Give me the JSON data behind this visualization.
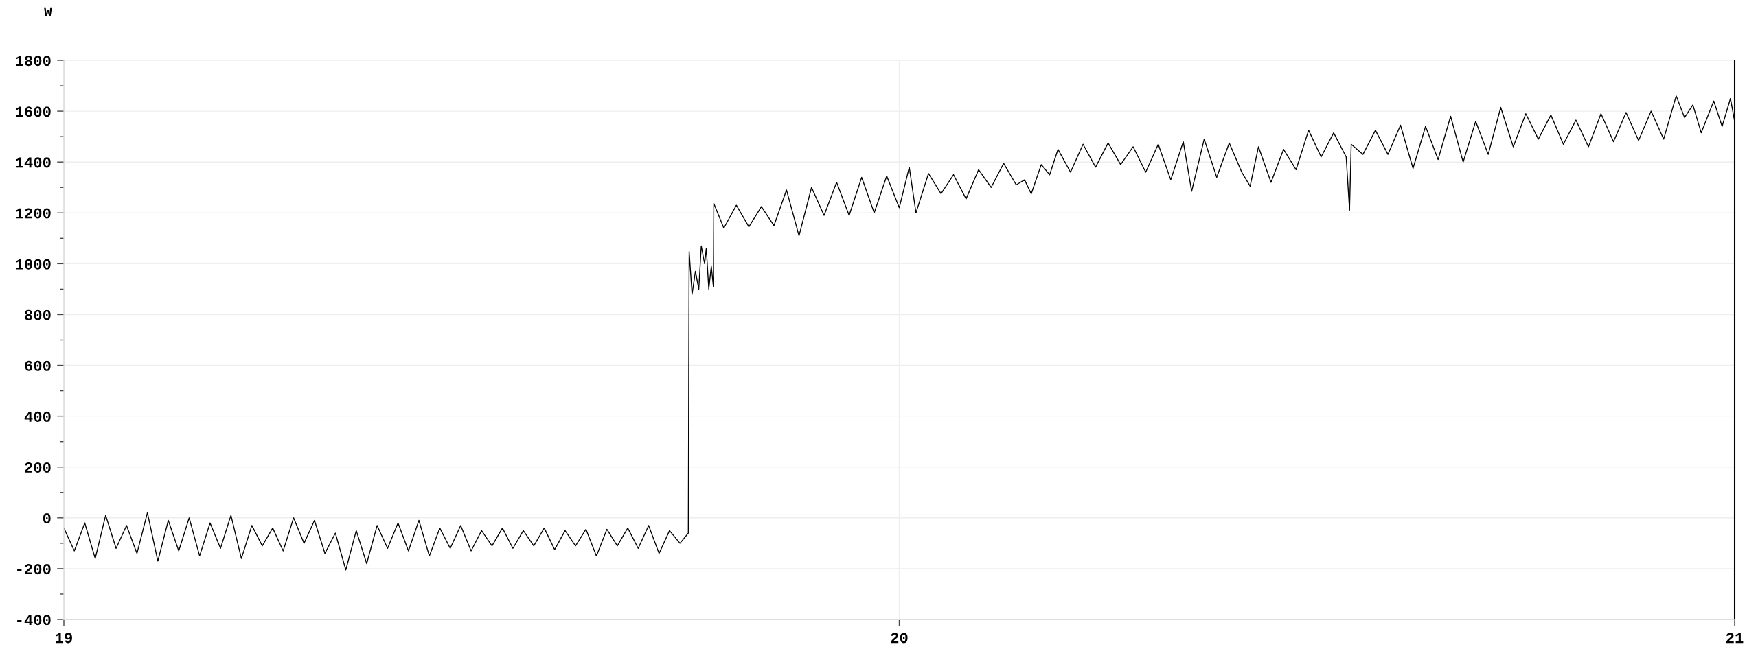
{
  "chart_data": {
    "type": "line",
    "ylabel": "W",
    "x": [
      19.0,
      19.0125,
      19.025,
      19.0375,
      19.05,
      19.0625,
      19.075,
      19.0875,
      19.1,
      19.1125,
      19.125,
      19.1375,
      19.15,
      19.1625,
      19.175,
      19.1875,
      19.2,
      19.2125,
      19.225,
      19.2375,
      19.25,
      19.2625,
      19.275,
      19.2875,
      19.3,
      19.3125,
      19.325,
      19.3375,
      19.35,
      19.3625,
      19.375,
      19.3875,
      19.4,
      19.4125,
      19.425,
      19.4375,
      19.45,
      19.4625,
      19.475,
      19.4875,
      19.5,
      19.5125,
      19.525,
      19.5375,
      19.55,
      19.5625,
      19.575,
      19.5875,
      19.6,
      19.6125,
      19.625,
      19.6375,
      19.65,
      19.6625,
      19.675,
      19.6875,
      19.7,
      19.7125,
      19.725,
      19.7375,
      19.7475,
      19.748,
      19.7485,
      19.752,
      19.756,
      19.76,
      19.763,
      19.767,
      19.769,
      19.772,
      19.775,
      19.7775,
      19.778,
      19.79,
      19.805,
      19.82,
      19.835,
      19.85,
      19.865,
      19.88,
      19.895,
      19.91,
      19.925,
      19.94,
      19.955,
      19.97,
      19.985,
      20.0,
      20.012,
      20.02,
      20.035,
      20.05,
      20.065,
      20.08,
      20.095,
      20.11,
      20.125,
      20.14,
      20.15,
      20.158,
      20.17,
      20.18,
      20.19,
      20.205,
      20.22,
      20.235,
      20.25,
      20.265,
      20.28,
      20.295,
      20.31,
      20.325,
      20.34,
      20.35,
      20.365,
      20.38,
      20.395,
      20.41,
      20.42,
      20.43,
      20.445,
      20.46,
      20.475,
      20.49,
      20.505,
      20.52,
      20.535,
      20.539,
      20.541,
      20.555,
      20.57,
      20.585,
      20.6,
      20.615,
      20.63,
      20.645,
      20.66,
      20.675,
      20.69,
      20.705,
      20.72,
      20.735,
      20.75,
      20.765,
      20.78,
      20.795,
      20.81,
      20.825,
      20.84,
      20.855,
      20.87,
      20.885,
      20.9,
      20.915,
      20.93,
      20.94,
      20.95,
      20.96,
      20.975,
      20.985,
      20.995,
      21.0
    ],
    "series": [
      {
        "color": "#000000",
        "values": [
          -40,
          -130,
          -20,
          -160,
          10,
          -120,
          -30,
          -140,
          20,
          -170,
          -10,
          -130,
          0,
          -150,
          -20,
          -120,
          10,
          -160,
          -30,
          -110,
          -40,
          -130,
          0,
          -100,
          -10,
          -140,
          -60,
          -205,
          -50,
          -180,
          -30,
          -120,
          -20,
          -130,
          -10,
          -150,
          -40,
          -120,
          -30,
          -130,
          -50,
          -110,
          -40,
          -120,
          -50,
          -110,
          -40,
          -125,
          -50,
          -110,
          -45,
          -150,
          -45,
          -110,
          -40,
          -120,
          -30,
          -140,
          -50,
          -100,
          -60,
          580,
          1048,
          880,
          970,
          900,
          1070,
          1000,
          1060,
          900,
          990,
          910,
          1237,
          1140,
          1230,
          1145,
          1225,
          1150,
          1290,
          1110,
          1300,
          1190,
          1320,
          1190,
          1340,
          1200,
          1345,
          1220,
          1380,
          1200,
          1355,
          1275,
          1350,
          1255,
          1370,
          1300,
          1395,
          1310,
          1330,
          1275,
          1390,
          1350,
          1450,
          1360,
          1470,
          1380,
          1475,
          1390,
          1460,
          1360,
          1470,
          1330,
          1480,
          1285,
          1490,
          1340,
          1475,
          1360,
          1305,
          1460,
          1320,
          1450,
          1370,
          1525,
          1420,
          1515,
          1420,
          1210,
          1470,
          1430,
          1525,
          1430,
          1545,
          1375,
          1540,
          1410,
          1580,
          1400,
          1560,
          1430,
          1615,
          1460,
          1590,
          1490,
          1585,
          1470,
          1565,
          1460,
          1590,
          1480,
          1595,
          1485,
          1600,
          1490,
          1660,
          1575,
          1625,
          1515,
          1640,
          1540,
          1650,
          1560
        ]
      }
    ],
    "xlim": [
      19,
      21
    ],
    "ylim": [
      -400,
      1800
    ],
    "xticks": [
      19,
      20,
      21
    ],
    "yticks": [
      -400,
      {
        "value": -300,
        "label": null
      },
      -200,
      {
        "value": -100,
        "label": null
      },
      0,
      {
        "value": 100,
        "label": null
      },
      200,
      {
        "value": 300,
        "label": null
      },
      400,
      {
        "value": 500,
        "label": null
      },
      600,
      {
        "value": 700,
        "label": null
      },
      800,
      {
        "value": 900,
        "label": null
      },
      1000,
      {
        "value": 1100,
        "label": null
      },
      1200,
      {
        "value": 1300,
        "label": null
      },
      1400,
      {
        "value": 1500,
        "label": null
      },
      1600,
      {
        "value": 1700,
        "label": null
      },
      1800
    ],
    "grid": true,
    "ref_lines": [
      {
        "axis": "x",
        "value": 21,
        "color": "#000000"
      }
    ]
  }
}
